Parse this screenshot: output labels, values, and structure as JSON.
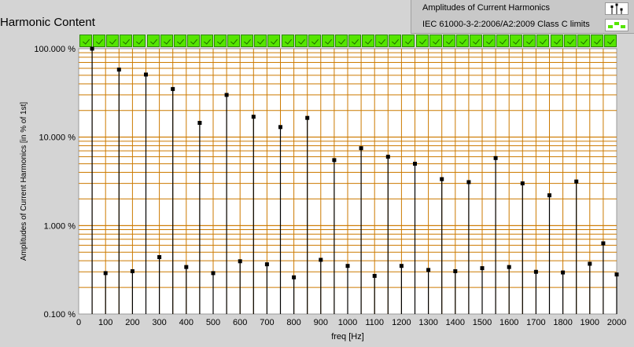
{
  "panel": {
    "title": "Harmonic Content"
  },
  "legend": {
    "items": [
      {
        "label": "Amplitudes of Current Harmonics",
        "icon": "stem-marker-icon"
      },
      {
        "label": "IEC 61000-3-2:2006/A2:2009 Class C limits",
        "icon": "limit-status-icon"
      }
    ]
  },
  "limit_status": {
    "count": 40,
    "state": "pass",
    "color": "#55e500"
  },
  "colors": {
    "plot_bg": "#ffffff",
    "grid": "#cc7a00",
    "stem": "#000000",
    "frame": "#9a9a9a"
  },
  "chart_data": {
    "type": "scatter",
    "style": "stem",
    "xlabel": "freq [Hz]",
    "ylabel": "Amplitudes of Current Harmonics [in % of 1st]",
    "xlim": [
      0,
      2000
    ],
    "ylim": [
      0.1,
      100
    ],
    "yscale": "log",
    "grid": true,
    "x_ticks": [
      "0",
      "100",
      "200",
      "300",
      "400",
      "500",
      "600",
      "700",
      "800",
      "900",
      "1000",
      "1100",
      "1200",
      "1300",
      "1400",
      "1500",
      "1600",
      "1700",
      "1800",
      "1900",
      "2000"
    ],
    "y_ticks": [
      "0.100 %",
      "1.000 %",
      "10.000 %",
      "100.000 %"
    ],
    "series": [
      {
        "name": "Amplitudes of Current Harmonics",
        "x": [
          50,
          100,
          150,
          200,
          250,
          300,
          350,
          400,
          450,
          500,
          550,
          600,
          650,
          700,
          750,
          800,
          850,
          900,
          950,
          1000,
          1050,
          1100,
          1150,
          1200,
          1250,
          1300,
          1350,
          1400,
          1450,
          1500,
          1550,
          1600,
          1650,
          1700,
          1750,
          1800,
          1850,
          1900,
          1950,
          2000
        ],
        "y": [
          100,
          0.29,
          58,
          0.305,
          51,
          0.44,
          35,
          0.34,
          14.5,
          0.29,
          30,
          0.395,
          17,
          0.365,
          13,
          0.26,
          16.5,
          0.41,
          5.5,
          0.35,
          7.5,
          0.27,
          6.0,
          0.35,
          5.0,
          0.315,
          3.35,
          0.305,
          3.1,
          0.33,
          5.8,
          0.34,
          3.0,
          0.3,
          2.2,
          0.295,
          3.15,
          0.37,
          0.63,
          0.28
        ]
      }
    ]
  }
}
